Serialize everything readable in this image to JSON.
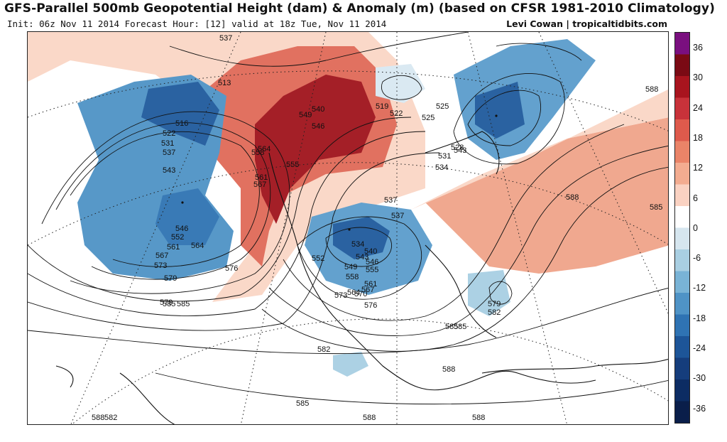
{
  "header": {
    "title": "GFS-Parallel 500mb Geopotential Height (dam) & Anomaly (m) (based on CFSR 1981-2010 Climatology)",
    "subtitle": "Init: 06z Nov 11 2014 Forecast Hour: [12] valid at 18z Tue, Nov 11 2014",
    "credit": "Levi Cowan | tropicaltidbits.com"
  },
  "colorbar": {
    "labels": [
      "36",
      "30",
      "24",
      "18",
      "12",
      "6",
      "0",
      "-6",
      "-12",
      "-18",
      "-24",
      "-30",
      "-36"
    ],
    "colors": [
      "#7a0f7f",
      "#7a0a14",
      "#a8141e",
      "#c8323a",
      "#de5a4c",
      "#ea8468",
      "#f3ac90",
      "#fad2c2",
      "#ffffff",
      "#d6e6ef",
      "#a9cfe2",
      "#79b3d6",
      "#4f93c6",
      "#2f73b3",
      "#1d5598",
      "#153d7c",
      "#0c2c63",
      "#0a1e4a"
    ]
  },
  "map": {
    "anomaly_colors": {
      "strong_positive": "#a0141c",
      "positive": "#d2423e",
      "weak_positive": "#f0a48a",
      "faint_positive": "#fad6c6",
      "faint_negative": "#d9e8f2",
      "weak_negative": "#a8cfe3",
      "negative": "#5b9dcc",
      "strong_negative": "#1f5a9c"
    },
    "contour_labels": [
      {
        "text": "537"
      },
      {
        "text": "513"
      },
      {
        "text": "516"
      },
      {
        "text": "522"
      },
      {
        "text": "531"
      },
      {
        "text": "537"
      },
      {
        "text": "543"
      },
      {
        "text": "546"
      },
      {
        "text": "552"
      },
      {
        "text": "561"
      },
      {
        "text": "564"
      },
      {
        "text": "567"
      },
      {
        "text": "573"
      },
      {
        "text": "579"
      },
      {
        "text": "576"
      },
      {
        "text": "585"
      },
      {
        "text": "564"
      },
      {
        "text": "558"
      },
      {
        "text": "561"
      },
      {
        "text": "567"
      },
      {
        "text": "555"
      },
      {
        "text": "549"
      },
      {
        "text": "540"
      },
      {
        "text": "546"
      },
      {
        "text": "519"
      },
      {
        "text": "522"
      },
      {
        "text": "525"
      },
      {
        "text": "525"
      },
      {
        "text": "528"
      },
      {
        "text": "531"
      },
      {
        "text": "543"
      },
      {
        "text": "534"
      },
      {
        "text": "537"
      },
      {
        "text": "537"
      },
      {
        "text": "534"
      },
      {
        "text": "540"
      },
      {
        "text": "543"
      },
      {
        "text": "546"
      },
      {
        "text": "549"
      },
      {
        "text": "552"
      },
      {
        "text": "555"
      },
      {
        "text": "558"
      },
      {
        "text": "561"
      },
      {
        "text": "564"
      },
      {
        "text": "567"
      },
      {
        "text": "570"
      },
      {
        "text": "573"
      },
      {
        "text": "576"
      },
      {
        "text": "579"
      },
      {
        "text": "582"
      },
      {
        "text": "585"
      },
      {
        "text": "588"
      },
      {
        "text": "588"
      },
      {
        "text": "585"
      },
      {
        "text": "579"
      },
      {
        "text": "582"
      },
      {
        "text": "585"
      },
      {
        "text": "585"
      },
      {
        "text": "585"
      },
      {
        "text": "588"
      },
      {
        "text": "588"
      },
      {
        "text": "588"
      },
      {
        "text": "588"
      },
      {
        "text": "582"
      }
    ]
  }
}
